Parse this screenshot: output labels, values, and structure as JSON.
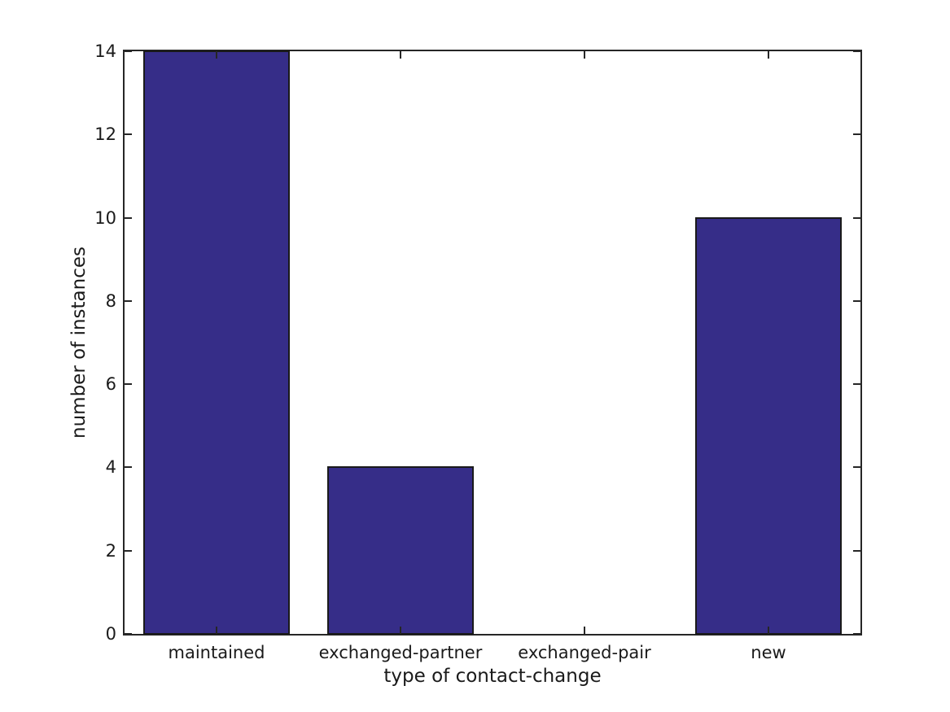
{
  "chart_data": {
    "type": "bar",
    "title": "",
    "categories": [
      "maintained",
      "exchanged-partner",
      "exchanged-pair",
      "new"
    ],
    "values": [
      14,
      4,
      0,
      10
    ],
    "xlabel": "type of contact-change",
    "ylabel": "number of instances",
    "ylim": [
      0,
      14
    ],
    "yticks": [
      0,
      2,
      4,
      6,
      8,
      10,
      12,
      14
    ],
    "legend": null,
    "grid": false,
    "bar_color": "#362d88",
    "bar_edge_color": "#1a1a1a",
    "axis_color": "#262626",
    "text_color": "#1a1a1a",
    "background_color": "#ffffff"
  }
}
